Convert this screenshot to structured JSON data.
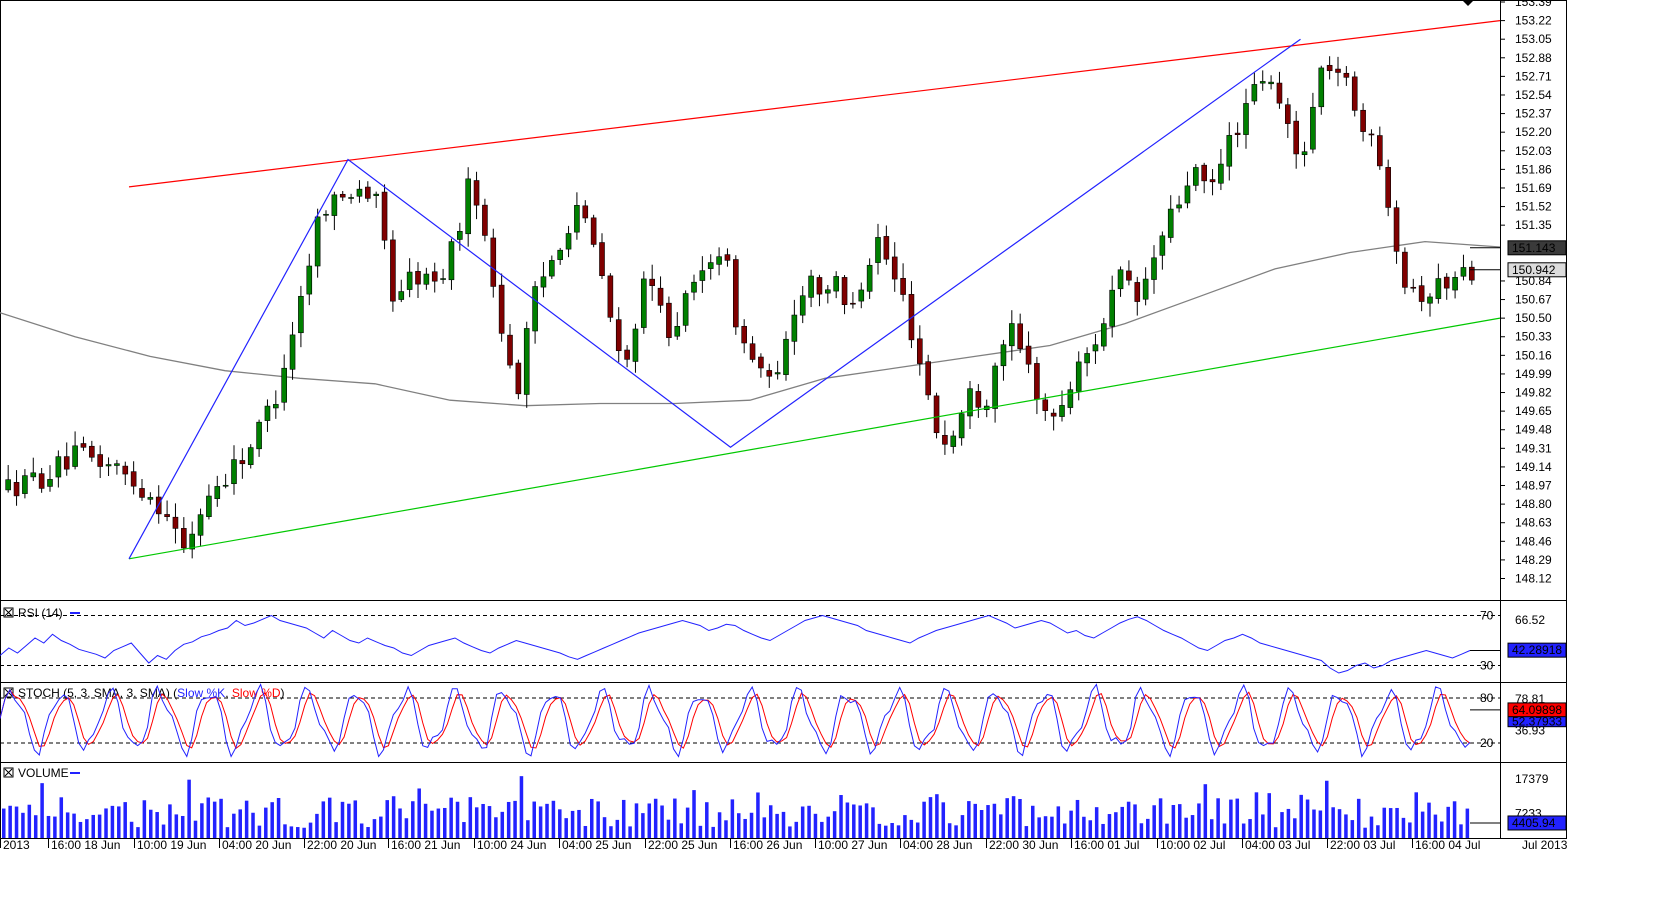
{
  "chart_data": {
    "type": "candlestick",
    "main": {
      "ylim": [
        147.96,
        153.39
      ],
      "y_ticks": [
        "153.39",
        "153.22",
        "153.05",
        "152.88",
        "152.71",
        "152.54",
        "152.37",
        "152.20",
        "152.03",
        "151.86",
        "151.69",
        "151.52",
        "151.35",
        "150.84",
        "150.67",
        "150.50",
        "150.33",
        "150.16",
        "149.99",
        "149.82",
        "149.65",
        "149.48",
        "149.31",
        "149.14",
        "148.97",
        "148.80",
        "148.63",
        "148.46",
        "148.29",
        "148.12"
      ],
      "price_boxes": [
        {
          "label": "151.143",
          "value": 151.143,
          "fill": "#3a3a3a",
          "text_color": "#ffffff"
        },
        {
          "label": "150.942",
          "value": 150.942,
          "fill": "#dcdcdc",
          "text_color": "#000000"
        }
      ],
      "candles": {
        "count": 176,
        "start": 148.95,
        "anchors": [
          [
            0,
            148.95
          ],
          [
            6,
            149.05
          ],
          [
            12,
            149.25
          ],
          [
            18,
            149.15
          ],
          [
            24,
            148.9
          ],
          [
            28,
            148.7
          ],
          [
            30,
            148.32
          ],
          [
            34,
            148.85
          ],
          [
            38,
            149.1
          ],
          [
            42,
            149.35
          ],
          [
            46,
            149.8
          ],
          [
            50,
            150.6
          ],
          [
            54,
            151.55
          ],
          [
            58,
            151.6
          ],
          [
            60,
            151.75
          ],
          [
            64,
            151.5
          ],
          [
            66,
            150.7
          ],
          [
            70,
            150.9
          ],
          [
            74,
            150.8
          ],
          [
            78,
            151.4
          ],
          [
            80,
            151.85
          ],
          [
            82,
            151.2
          ],
          [
            84,
            150.7
          ],
          [
            86,
            150.15
          ],
          [
            88,
            149.85
          ],
          [
            90,
            150.6
          ],
          [
            94,
            151.1
          ],
          [
            98,
            151.55
          ],
          [
            102,
            150.95
          ],
          [
            104,
            150.4
          ],
          [
            106,
            149.95
          ],
          [
            108,
            150.5
          ],
          [
            110,
            150.85
          ],
          [
            112,
            150.6
          ],
          [
            114,
            150.4
          ],
          [
            118,
            150.75
          ],
          [
            122,
            151.2
          ],
          [
            124,
            150.9
          ],
          [
            126,
            150.3
          ],
          [
            130,
            150.0
          ],
          [
            132,
            149.8
          ],
          [
            134,
            150.3
          ],
          [
            136,
            150.7
          ],
          [
            138,
            150.9
          ],
          [
            140,
            150.75
          ],
          [
            142,
            150.85
          ],
          [
            144,
            150.6
          ],
          [
            146,
            150.75
          ],
          [
            148,
            151.0
          ],
          [
            150,
            151.25
          ],
          [
            152,
            150.9
          ],
          [
            154,
            150.7
          ],
          [
            156,
            150.3
          ],
          [
            158,
            149.9
          ],
          [
            160,
            149.45
          ],
          [
            162,
            149.33
          ],
          [
            164,
            149.6
          ],
          [
            166,
            149.85
          ],
          [
            168,
            149.7
          ],
          [
            170,
            150.1
          ],
          [
            172,
            150.45
          ],
          [
            174,
            150.2
          ],
          [
            176,
            150.0
          ],
          [
            178,
            149.7
          ],
          [
            180,
            149.55
          ],
          [
            182,
            149.8
          ],
          [
            184,
            150.0
          ],
          [
            186,
            150.2
          ],
          [
            188,
            150.4
          ],
          [
            190,
            150.7
          ],
          [
            192,
            150.9
          ],
          [
            194,
            150.6
          ],
          [
            196,
            150.85
          ],
          [
            198,
            151.15
          ],
          [
            200,
            151.4
          ],
          [
            202,
            151.6
          ],
          [
            204,
            151.9
          ],
          [
            206,
            151.65
          ],
          [
            208,
            151.75
          ],
          [
            210,
            152.1
          ],
          [
            212,
            152.3
          ],
          [
            214,
            152.5
          ],
          [
            216,
            152.7
          ],
          [
            218,
            152.55
          ],
          [
            220,
            152.3
          ],
          [
            222,
            151.95
          ],
          [
            224,
            152.25
          ],
          [
            226,
            152.75
          ],
          [
            228,
            152.85
          ],
          [
            230,
            152.65
          ],
          [
            232,
            152.45
          ],
          [
            234,
            152.2
          ],
          [
            236,
            151.9
          ],
          [
            238,
            151.55
          ],
          [
            240,
            150.9
          ],
          [
            244,
            150.7
          ],
          [
            248,
            150.85
          ],
          [
            252,
            150.95
          ]
        ],
        "up_color": "#008000",
        "down_color": "#800000",
        "wick_color": "#000000"
      },
      "ma200": {
        "color": "#808080",
        "points": [
          [
            0,
            150.55
          ],
          [
            0.05,
            150.33
          ],
          [
            0.1,
            150.15
          ],
          [
            0.15,
            150.02
          ],
          [
            0.2,
            149.95
          ],
          [
            0.25,
            149.9
          ],
          [
            0.3,
            149.75
          ],
          [
            0.35,
            149.7
          ],
          [
            0.4,
            149.72
          ],
          [
            0.45,
            149.72
          ],
          [
            0.5,
            149.75
          ],
          [
            0.55,
            149.95
          ],
          [
            0.6,
            150.05
          ],
          [
            0.65,
            150.15
          ],
          [
            0.7,
            150.25
          ],
          [
            0.75,
            150.45
          ],
          [
            0.8,
            150.7
          ],
          [
            0.85,
            150.95
          ],
          [
            0.9,
            151.1
          ],
          [
            0.95,
            151.2
          ],
          [
            1.0,
            151.15
          ]
        ]
      },
      "resistance_line": {
        "color": "#ff0000",
        "p1": [
          0.086,
          151.7
        ],
        "p2": [
          1.0,
          153.22
        ]
      },
      "support_line": {
        "color": "#00c800",
        "p1": [
          0.086,
          148.3
        ],
        "p2": [
          1.0,
          150.5
        ]
      },
      "zigzag": {
        "color": "#2222ff",
        "points": [
          [
            0.086,
            148.3
          ],
          [
            0.232,
            151.95
          ],
          [
            0.487,
            149.32
          ],
          [
            0.867,
            153.05
          ]
        ]
      }
    },
    "rsi": {
      "label": "RSI (14)",
      "color": "#2222ff",
      "ylim": [
        20,
        80
      ],
      "levels": [
        70,
        30
      ],
      "level_labels": [
        "70",
        "30"
      ],
      "right_labels": [
        "66.52"
      ],
      "value_box": "42.28918",
      "values": [
        38,
        44,
        40,
        46,
        52,
        48,
        55,
        50,
        47,
        43,
        41,
        39,
        36,
        42,
        45,
        48,
        40,
        32,
        38,
        35,
        42,
        47,
        49,
        53,
        55,
        58,
        60,
        66,
        62,
        64,
        67,
        70,
        66,
        64,
        62,
        60,
        56,
        52,
        58,
        54,
        50,
        48,
        52,
        49,
        46,
        44,
        40,
        38,
        42,
        46,
        48,
        50,
        52,
        48,
        45,
        42,
        40,
        44,
        47,
        50,
        48,
        46,
        44,
        42,
        40,
        37,
        35,
        38,
        41,
        44,
        47,
        50,
        53,
        56,
        58,
        60,
        62,
        64,
        66,
        64,
        62,
        58,
        60,
        63,
        62,
        58,
        55,
        52,
        50,
        54,
        58,
        62,
        66,
        68,
        70,
        68,
        66,
        64,
        62,
        58,
        56,
        54,
        52,
        50,
        48,
        52,
        55,
        58,
        60,
        62,
        64,
        66,
        68,
        70,
        67,
        64,
        60,
        62,
        64,
        66,
        64,
        60,
        56,
        58,
        54,
        52,
        56,
        60,
        64,
        67,
        69,
        66,
        62,
        58,
        55,
        52,
        48,
        44,
        42,
        46,
        50,
        52,
        55,
        52,
        48,
        46,
        44,
        42,
        40,
        38,
        36,
        34,
        28,
        24,
        26,
        30,
        32,
        28,
        30,
        34,
        36,
        38,
        40,
        42,
        40,
        38,
        36,
        39,
        42
      ]
    },
    "stoch": {
      "label": "STOCH (5, 3, SMA, 3, SMA)",
      "k_label": "Slow %K",
      "d_label": "Slow %D",
      "k_color": "#2222ff",
      "d_color": "#ff0000",
      "ylim": [
        0,
        100
      ],
      "levels": [
        80,
        20
      ],
      "level_labels": [
        "80",
        "20"
      ],
      "right_labels": [
        "78.81",
        "36.93"
      ],
      "value_box": "64.09898",
      "value_box2": "52.37933",
      "cycles": 30
    },
    "volume": {
      "label": "VOLUME",
      "color": "#2222ff",
      "ymax": 22000,
      "right_labels": [
        "17379",
        "7233"
      ],
      "value_box": "4405.94",
      "bar_count": 230
    },
    "x_labels": [
      "2013",
      "16:00 18 Jun",
      "10:00 19 Jun",
      "04:00 20 Jun",
      "22:00 20 Jun",
      "16:00 21 Jun",
      "10:00 24 Jun",
      "04:00 25 Jun",
      "22:00 25 Jun",
      "16:00 26 Jun",
      "10:00 27 Jun",
      "04:00 28 Jun",
      "22:00 30 Jun",
      "16:00 01 Jul",
      "10:00 02 Jul",
      "04:00 03 Jul",
      "22:00 03 Jul",
      "16:00 04 Jul",
      "Jul 2013"
    ],
    "grid": false
  }
}
